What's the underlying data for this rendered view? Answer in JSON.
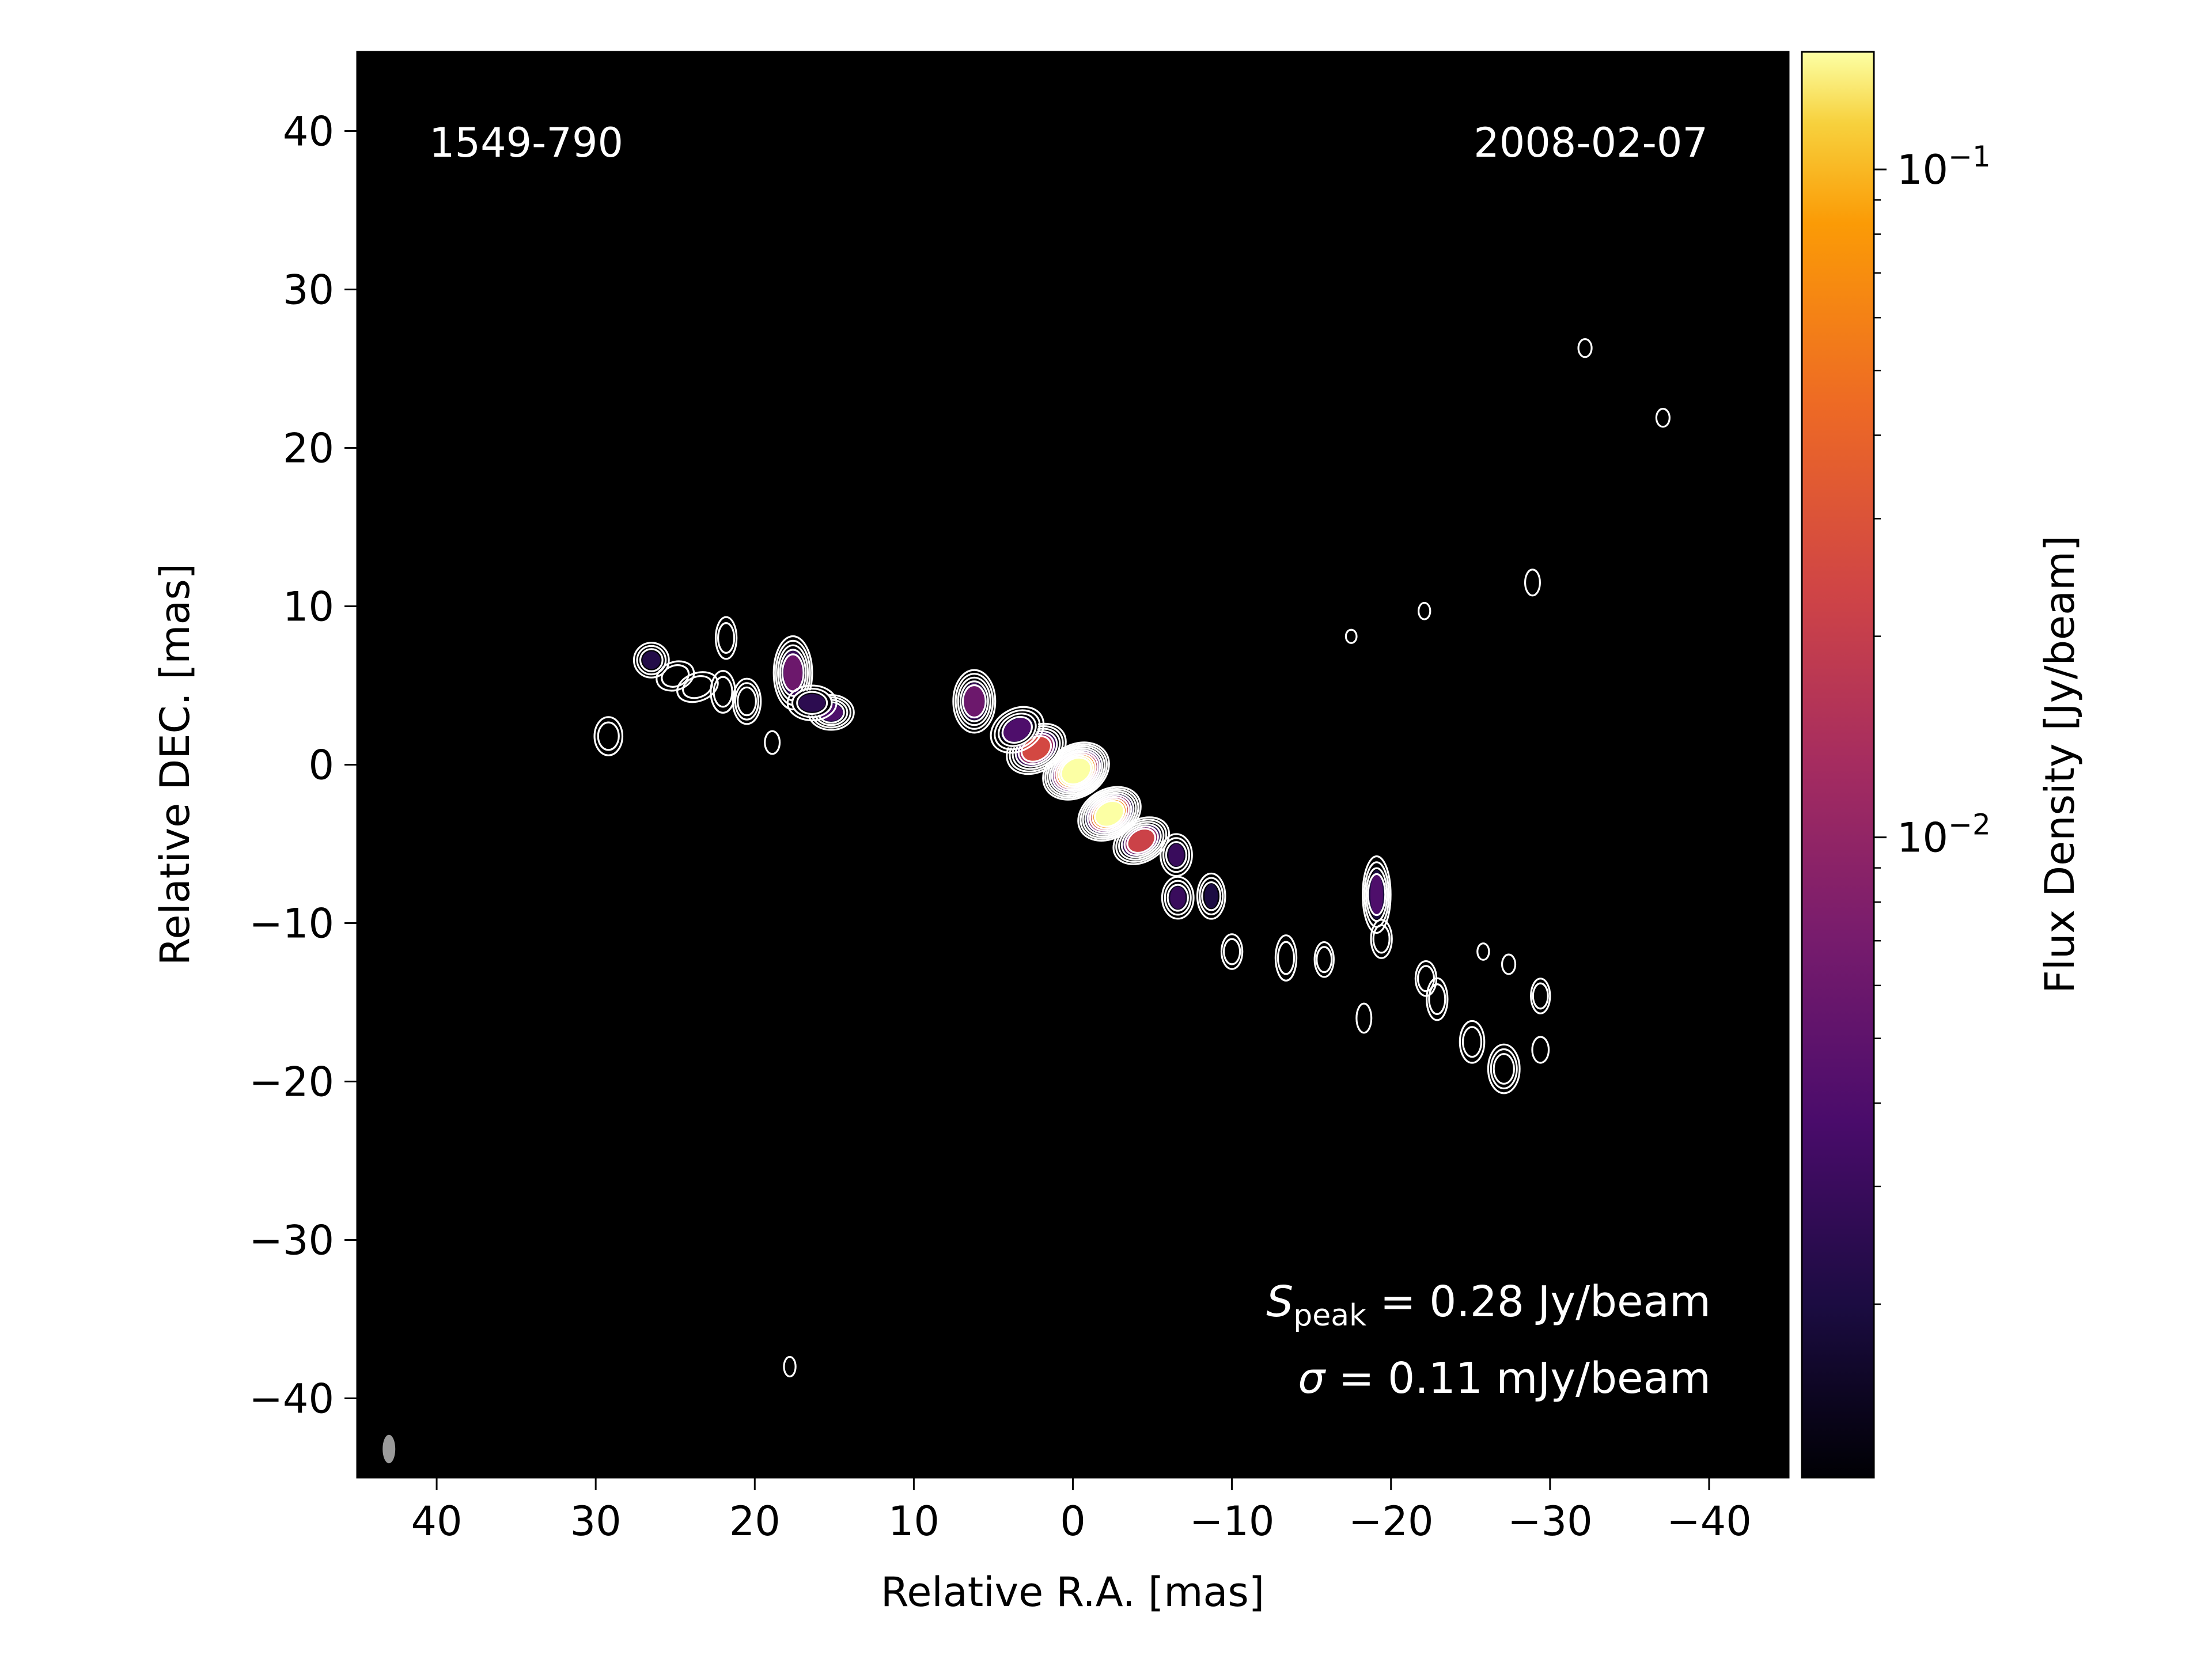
{
  "chart_data": {
    "type": "heatmap",
    "title": "",
    "source_label": "1549-790",
    "epoch_label": "2008-02-07",
    "xlabel": "Relative R.A. [mas]",
    "ylabel": "Relative DEC. [mas]",
    "xlim": [
      45,
      -45
    ],
    "ylim": [
      -45,
      45
    ],
    "x_ticks": [
      40,
      30,
      20,
      10,
      0,
      -10,
      -20,
      -30,
      -40
    ],
    "y_ticks": [
      40,
      30,
      20,
      10,
      0,
      -10,
      -20,
      -30,
      -40
    ],
    "x_tick_labels": [
      "40",
      "30",
      "20",
      "10",
      "0",
      "−10",
      "−20",
      "−30",
      "−40"
    ],
    "y_tick_labels": [
      "40",
      "30",
      "20",
      "10",
      "0",
      "−10",
      "−20",
      "−30",
      "−40"
    ],
    "colorbar": {
      "label": "Flux Density [Jy/beam]",
      "scale": "log",
      "colormap": "inferno",
      "range": [
        0.0011,
        0.15
      ],
      "ticks": [
        0.1,
        0.01
      ],
      "tick_base": "10",
      "tick_exponents": [
        "−1",
        "−2"
      ]
    },
    "annotations": {
      "peak_symbol": "S",
      "peak_subscript": "peak",
      "peak_text": " = 0.28 Jy/beam",
      "sigma_symbol": "σ",
      "sigma_text": " = 0.11 mJy/beam"
    },
    "beam": {
      "x": 43,
      "y": -43.2,
      "major_mas": 1.8,
      "minor_mas": 0.8,
      "color": "#9a9a9a"
    },
    "contour_color": "#ffffff",
    "background_color": "#000000",
    "components": [
      {
        "x": -0.2,
        "y": -0.4,
        "flux": 0.28,
        "sx": 1.8,
        "sy": 1.3,
        "rot": -30,
        "n": 9
      },
      {
        "x": -2.3,
        "y": -3.1,
        "flux": 0.15,
        "sx": 1.7,
        "sy": 1.2,
        "rot": -30,
        "n": 8
      },
      {
        "x": 2.3,
        "y": 1.0,
        "flux": 0.025,
        "sx": 1.6,
        "sy": 1.1,
        "rot": -30,
        "n": 6
      },
      {
        "x": -4.3,
        "y": -4.8,
        "flux": 0.022,
        "sx": 1.5,
        "sy": 1.0,
        "rot": -30,
        "n": 6
      },
      {
        "x": 6.2,
        "y": 4.0,
        "flux": 0.006,
        "sx": 1.0,
        "sy": 1.6,
        "rot": 0,
        "n": 5
      },
      {
        "x": 3.5,
        "y": 2.2,
        "flux": 0.004,
        "sx": 1.4,
        "sy": 1.0,
        "rot": -30,
        "n": 4
      },
      {
        "x": -6.5,
        "y": -5.7,
        "flux": 0.003,
        "sx": 0.7,
        "sy": 1.0,
        "rot": 0,
        "n": 3
      },
      {
        "x": -6.6,
        "y": -8.4,
        "flux": 0.003,
        "sx": 0.7,
        "sy": 1.0,
        "rot": 0,
        "n": 3
      },
      {
        "x": -8.7,
        "y": -8.3,
        "flux": 0.002,
        "sx": 0.6,
        "sy": 1.1,
        "rot": 0,
        "n": 3
      },
      {
        "x": 17.6,
        "y": 5.8,
        "flux": 0.006,
        "sx": 0.9,
        "sy": 1.9,
        "rot": 0,
        "n": 5
      },
      {
        "x": 15.2,
        "y": 3.3,
        "flux": 0.004,
        "sx": 1.1,
        "sy": 0.8,
        "rot": 0,
        "n": 4
      },
      {
        "x": 16.4,
        "y": 3.9,
        "flux": 0.0025,
        "sx": 1.2,
        "sy": 0.8,
        "rot": 0,
        "n": 3
      },
      {
        "x": 20.5,
        "y": 4.0,
        "flux": 0.0015,
        "sx": 0.6,
        "sy": 1.1,
        "rot": 0,
        "n": 3
      },
      {
        "x": 22.0,
        "y": 4.6,
        "flux": 0.0012,
        "sx": 0.5,
        "sy": 1.0,
        "rot": 0,
        "n": 2
      },
      {
        "x": 23.6,
        "y": 4.9,
        "flux": 0.0012,
        "sx": 1.0,
        "sy": 0.6,
        "rot": -20,
        "n": 2
      },
      {
        "x": 25.0,
        "y": 5.6,
        "flux": 0.0012,
        "sx": 0.9,
        "sy": 0.6,
        "rot": -20,
        "n": 2
      },
      {
        "x": 26.5,
        "y": 6.6,
        "flux": 0.0022,
        "sx": 0.8,
        "sy": 0.8,
        "rot": 0,
        "n": 3
      },
      {
        "x": 21.8,
        "y": 8.0,
        "flux": 0.0015,
        "sx": 0.4,
        "sy": 1.0,
        "rot": 0,
        "n": 2
      },
      {
        "x": 29.2,
        "y": 1.8,
        "flux": 0.0013,
        "sx": 0.6,
        "sy": 0.9,
        "rot": 0,
        "n": 2
      },
      {
        "x": 18.9,
        "y": 1.4,
        "flux": 0.0011,
        "sx": 0.25,
        "sy": 0.5,
        "rot": 0,
        "n": 1
      },
      {
        "x": -10.0,
        "y": -11.8,
        "flux": 0.0012,
        "sx": 0.4,
        "sy": 0.8,
        "rot": 0,
        "n": 2
      },
      {
        "x": -13.4,
        "y": -12.2,
        "flux": 0.0014,
        "sx": 0.4,
        "sy": 1.1,
        "rot": 0,
        "n": 2
      },
      {
        "x": -15.8,
        "y": -12.3,
        "flux": 0.0012,
        "sx": 0.35,
        "sy": 0.8,
        "rot": 0,
        "n": 2
      },
      {
        "x": -19.1,
        "y": -8.2,
        "flux": 0.004,
        "sx": 0.6,
        "sy": 2.0,
        "rot": 0,
        "n": 4
      },
      {
        "x": -19.4,
        "y": -11.0,
        "flux": 0.0013,
        "sx": 0.4,
        "sy": 0.9,
        "rot": 0,
        "n": 2
      },
      {
        "x": -18.3,
        "y": -16.0,
        "flux": 0.0011,
        "sx": 0.25,
        "sy": 0.7,
        "rot": 0,
        "n": 1
      },
      {
        "x": -22.2,
        "y": -13.5,
        "flux": 0.0013,
        "sx": 0.4,
        "sy": 0.8,
        "rot": 0,
        "n": 2
      },
      {
        "x": -22.9,
        "y": -14.8,
        "flux": 0.0014,
        "sx": 0.4,
        "sy": 1.0,
        "rot": 0,
        "n": 2
      },
      {
        "x": -25.1,
        "y": -17.5,
        "flux": 0.0015,
        "sx": 0.5,
        "sy": 1.0,
        "rot": 0,
        "n": 2
      },
      {
        "x": -27.1,
        "y": -19.2,
        "flux": 0.0016,
        "sx": 0.7,
        "sy": 1.2,
        "rot": 0,
        "n": 3
      },
      {
        "x": -29.4,
        "y": -14.6,
        "flux": 0.0012,
        "sx": 0.35,
        "sy": 0.8,
        "rot": 0,
        "n": 2
      },
      {
        "x": -29.4,
        "y": -18.0,
        "flux": 0.0011,
        "sx": 0.3,
        "sy": 0.6,
        "rot": 0,
        "n": 1
      },
      {
        "x": -27.4,
        "y": -12.6,
        "flux": 0.0011,
        "sx": 0.2,
        "sy": 0.4,
        "rot": 0,
        "n": 1
      },
      {
        "x": -25.8,
        "y": -11.8,
        "flux": 0.0011,
        "sx": 0.15,
        "sy": 0.3,
        "rot": 0,
        "n": 1
      },
      {
        "x": -28.9,
        "y": 11.5,
        "flux": 0.0011,
        "sx": 0.25,
        "sy": 0.6,
        "rot": 0,
        "n": 1
      },
      {
        "x": -32.2,
        "y": 26.3,
        "flux": 0.0011,
        "sx": 0.2,
        "sy": 0.35,
        "rot": 0,
        "n": 1
      },
      {
        "x": -37.1,
        "y": 21.9,
        "flux": 0.0011,
        "sx": 0.2,
        "sy": 0.35,
        "rot": 0,
        "n": 1
      },
      {
        "x": -22.1,
        "y": 9.7,
        "flux": 0.0011,
        "sx": 0.15,
        "sy": 0.3,
        "rot": 0,
        "n": 1
      },
      {
        "x": -17.5,
        "y": 8.1,
        "flux": 0.0011,
        "sx": 0.12,
        "sy": 0.2,
        "rot": 0,
        "n": 1
      },
      {
        "x": 17.8,
        "y": -38.0,
        "flux": 0.0011,
        "sx": 0.15,
        "sy": 0.4,
        "rot": 0,
        "n": 1
      }
    ]
  }
}
